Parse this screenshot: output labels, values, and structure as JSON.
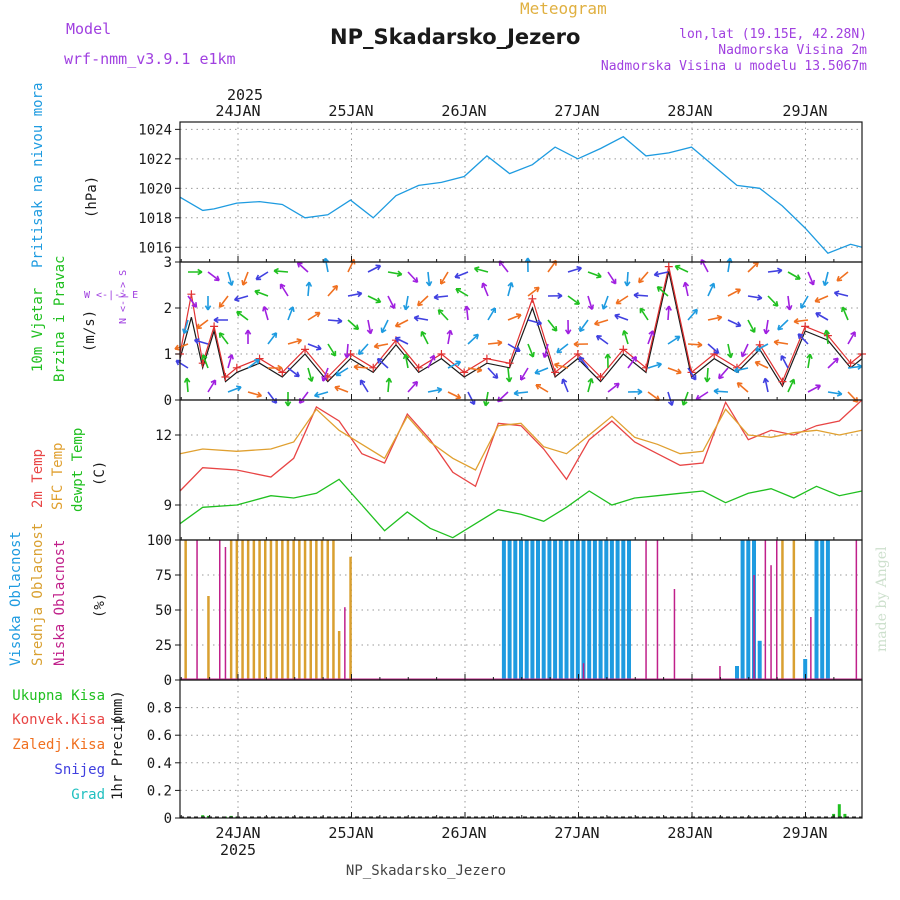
{
  "header": {
    "model_label": "Model",
    "model_name": "wrf-nmm_v3.9.1 e1km",
    "chart_kind": "Meteogram",
    "station": "NP_Skadarsko_Jezero",
    "lonlat": "lon,lat (19.15E, 42.28N)",
    "height_line": "Nadmorska Visina 2m",
    "model_height_line": "Nadmorska Visina u modelu 13.5067m",
    "footer_station": "NP_Skadarsko_Jezero",
    "credit": "made by Angel"
  },
  "colors": {
    "pressure": "#1e9be0",
    "wind_speed": "#1a1a1a",
    "gust": "#e03030",
    "temp2m": "#e84545",
    "sfc_temp": "#e0a030",
    "dewpt": "#20c020",
    "high_cloud": "#1e9be0",
    "mid_cloud": "#d9a030",
    "low_cloud": "#c0208a",
    "total_precip": "#20c020",
    "conv_precip": "#e84545",
    "frozen_precip": "#f07020",
    "snow": "#4040e0",
    "graupel": "#20c0c0",
    "model_header": "#a040e0",
    "chart_kind": "#e0b040"
  },
  "chart_data": [
    {
      "type": "line",
      "panel": "pressure",
      "ylabel_main": "Pritisak na nivou mora",
      "ylabel_unit": "(hPa)",
      "ylim": [
        1015,
        1024.5
      ],
      "yticks": [
        "1016",
        "1018",
        "1020",
        "1022",
        "1024"
      ],
      "x": [
        0,
        0.2,
        0.3,
        0.5,
        0.7,
        0.9,
        1.1,
        1.3,
        1.5,
        1.7,
        1.9,
        2.1,
        2.3,
        2.5,
        2.7,
        2.9,
        3.1,
        3.3,
        3.5,
        3.7,
        3.9,
        4.1,
        4.3,
        4.5,
        4.7,
        4.9,
        5.1,
        5.3,
        5.5,
        5.7,
        5.9,
        6.0
      ],
      "series": [
        {
          "values": [
            1019.4,
            1018.5,
            1018.6,
            1019.0,
            1019.1,
            1018.9,
            1018.0,
            1018.2,
            1019.2,
            1018.0,
            1019.5,
            1020.2,
            1020.4,
            1020.8,
            1022.2,
            1021.0,
            1021.6,
            1022.8,
            1022.0,
            1022.7,
            1023.5,
            1022.2,
            1022.4,
            1022.8,
            1021.5,
            1020.2,
            1020.0,
            1018.8,
            1017.3,
            1015.6,
            1016.2,
            1016.0
          ]
        }
      ]
    },
    {
      "type": "line",
      "panel": "wind",
      "ylabel_main": "10m Vjetar",
      "ylabel_sub": "Brzina i Pravac",
      "ylabel_unit": "(m/s)",
      "compass_ns": "N <-|-> S",
      "compass_we": "W <-|-> E",
      "ylim": [
        0,
        3
      ],
      "yticks": [
        "0",
        "1",
        "2",
        "3"
      ],
      "x": [
        0,
        0.1,
        0.2,
        0.3,
        0.4,
        0.5,
        0.7,
        0.9,
        1.1,
        1.3,
        1.5,
        1.7,
        1.9,
        2.1,
        2.3,
        2.5,
        2.7,
        2.9,
        3.1,
        3.3,
        3.5,
        3.7,
        3.9,
        4.1,
        4.3,
        4.5,
        4.7,
        4.9,
        5.1,
        5.3,
        5.5,
        5.7,
        5.9,
        6.0
      ],
      "series": [
        {
          "values": [
            0.9,
            1.8,
            0.7,
            1.5,
            0.4,
            0.6,
            0.8,
            0.5,
            1.0,
            0.4,
            0.9,
            0.6,
            1.2,
            0.6,
            0.9,
            0.5,
            0.8,
            0.7,
            2.0,
            0.5,
            0.9,
            0.4,
            1.0,
            0.6,
            2.8,
            0.5,
            0.9,
            0.6,
            1.1,
            0.3,
            1.5,
            1.3,
            0.7,
            0.9
          ]
        },
        {
          "values": [
            1.0,
            2.3,
            0.8,
            1.6,
            0.5,
            0.7,
            0.9,
            0.6,
            1.1,
            0.5,
            1.0,
            0.7,
            1.3,
            0.7,
            1.0,
            0.6,
            0.9,
            0.8,
            2.2,
            0.6,
            1.0,
            0.5,
            1.1,
            0.7,
            2.9,
            0.6,
            1.0,
            0.7,
            1.2,
            0.4,
            1.6,
            1.4,
            0.8,
            1.0
          ]
        }
      ]
    },
    {
      "type": "line",
      "panel": "temperature",
      "ylabel_a": "2m Temp",
      "ylabel_b": "SFC Temp",
      "ylabel_c": "dewpt Temp",
      "ylabel_unit": "(C)",
      "ylim": [
        7.5,
        13.5
      ],
      "yticks": [
        "9",
        "12"
      ],
      "x": [
        0,
        0.2,
        0.5,
        0.8,
        1.0,
        1.2,
        1.4,
        1.6,
        1.8,
        2.0,
        2.2,
        2.4,
        2.6,
        2.8,
        3.0,
        3.2,
        3.4,
        3.6,
        3.8,
        4.0,
        4.2,
        4.4,
        4.6,
        4.8,
        5.0,
        5.2,
        5.4,
        5.6,
        5.8,
        6.0
      ],
      "series": [
        {
          "values": [
            9.6,
            10.6,
            10.5,
            10.2,
            11.0,
            13.2,
            12.6,
            11.2,
            10.8,
            12.9,
            11.8,
            10.4,
            9.8,
            12.5,
            12.4,
            11.4,
            10.1,
            11.8,
            12.6,
            11.7,
            11.2,
            10.7,
            10.8,
            13.4,
            11.8,
            12.2,
            12.0,
            12.4,
            12.6,
            13.5
          ]
        },
        {
          "values": [
            11.2,
            11.4,
            11.3,
            11.4,
            11.7,
            13.1,
            12.2,
            11.6,
            11.0,
            12.8,
            11.7,
            11.0,
            10.5,
            12.4,
            12.5,
            11.5,
            11.2,
            12.0,
            12.8,
            11.9,
            11.6,
            11.2,
            11.3,
            13.1,
            12.0,
            11.9,
            12.1,
            12.2,
            12.0,
            12.2
          ]
        },
        {
          "values": [
            8.2,
            8.9,
            9.0,
            9.4,
            9.3,
            9.5,
            10.1,
            9.0,
            7.9,
            8.7,
            8.0,
            7.6,
            8.2,
            8.8,
            8.6,
            8.3,
            8.9,
            9.6,
            9.0,
            9.3,
            9.4,
            9.5,
            9.6,
            9.1,
            9.5,
            9.7,
            9.3,
            9.8,
            9.4,
            9.6
          ]
        }
      ]
    },
    {
      "type": "bar",
      "panel": "cloud",
      "ylabel_a": "Visoka Oblacnost",
      "ylabel_b": "Srednja Oblacnost",
      "ylabel_c": "Niska Oblacnost",
      "ylabel_unit": "(%)",
      "ylim": [
        0,
        100
      ],
      "yticks": [
        "0",
        "25",
        "50",
        "75",
        "100"
      ],
      "series": [
        {
          "values_x": [
            2.85,
            2.9,
            2.95,
            3.0,
            3.05,
            3.1,
            3.15,
            3.2,
            3.25,
            3.3,
            3.35,
            3.4,
            3.45,
            3.5,
            3.55,
            3.6,
            3.65,
            3.7,
            3.75,
            3.8,
            3.85,
            3.9,
            3.95,
            4.9,
            4.95,
            5.0,
            5.05,
            5.1,
            5.5,
            5.6,
            5.65,
            5.7
          ],
          "values": [
            100,
            100,
            100,
            100,
            100,
            100,
            100,
            100,
            100,
            100,
            100,
            100,
            100,
            100,
            100,
            100,
            100,
            100,
            100,
            100,
            100,
            100,
            100,
            10,
            100,
            100,
            100,
            28,
            15,
            100,
            100,
            100
          ]
        },
        {
          "values_x": [
            0.05,
            0.25,
            0.45,
            0.5,
            0.55,
            0.6,
            0.65,
            0.7,
            0.75,
            0.8,
            0.85,
            0.9,
            0.95,
            1.0,
            1.05,
            1.1,
            1.15,
            1.2,
            1.25,
            1.3,
            1.35,
            1.4,
            1.5,
            5.3,
            5.4
          ],
          "values": [
            100,
            60,
            100,
            100,
            100,
            100,
            100,
            100,
            100,
            100,
            100,
            100,
            100,
            100,
            100,
            100,
            100,
            100,
            100,
            100,
            100,
            35,
            88,
            100,
            100
          ]
        },
        {
          "values_x": [
            0.15,
            0.35,
            0.4,
            1.45,
            3.55,
            4.1,
            4.2,
            4.35,
            4.75,
            5.05,
            5.15,
            5.2,
            5.25,
            5.55,
            5.95
          ],
          "values": [
            100,
            100,
            95,
            52,
            12,
            100,
            100,
            65,
            10,
            75,
            100,
            82,
            100,
            45,
            100
          ]
        }
      ]
    },
    {
      "type": "bar",
      "panel": "precip",
      "ylabel_main": "1hr Precip",
      "ylabel_unit": "(mm)",
      "legend": [
        "Ukupna Kisa",
        "Konvek.Kisa",
        "Zaledj.Kisa",
        "Snijeg",
        "Grad"
      ],
      "ylim": [
        0,
        1.0
      ],
      "yticks": [
        "0",
        "0.2",
        "0.4",
        "0.6",
        "0.8"
      ],
      "series": [
        {
          "values_x": [
            0.2,
            0.25,
            0.4,
            0.45,
            0.5,
            5.75,
            5.8,
            5.85
          ],
          "values": [
            0.02,
            0.015,
            0.01,
            0.015,
            0.01,
            0.03,
            0.1,
            0.03
          ]
        }
      ]
    }
  ],
  "xaxis": {
    "year": "2025",
    "day_labels": [
      "24JAN",
      "25JAN",
      "26JAN",
      "27JAN",
      "28JAN",
      "29JAN"
    ]
  }
}
